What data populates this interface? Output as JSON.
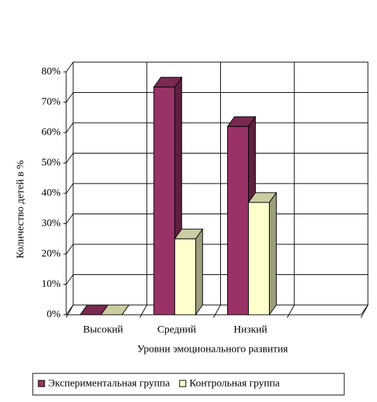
{
  "chart_data": {
    "type": "bar3d",
    "x_label": "Уровни эмоционального развития",
    "y_label": "Количество детей в %",
    "categories": [
      "Высокий",
      "Средний",
      "Низкий",
      null
    ],
    "series": [
      {
        "name": "Экспериментальная группа",
        "color": "#993366",
        "values": [
          0,
          75,
          62,
          null
        ]
      },
      {
        "name": "Контрольная группа",
        "color": "#ffffcc",
        "values": [
          0,
          25,
          37,
          null
        ]
      }
    ],
    "ylim": [
      0,
      80
    ],
    "yticks": [
      {
        "value": 0,
        "label": "0%"
      },
      {
        "value": 10,
        "label": "10%"
      },
      {
        "value": 20,
        "label": "20%"
      },
      {
        "value": 30,
        "label": "30%"
      },
      {
        "value": 40,
        "label": "40%"
      },
      {
        "value": 50,
        "label": "50%"
      },
      {
        "value": 60,
        "label": "60%"
      },
      {
        "value": 70,
        "label": "70%"
      },
      {
        "value": 80,
        "label": "80%"
      }
    ],
    "grid": true,
    "legend": "bottom"
  }
}
